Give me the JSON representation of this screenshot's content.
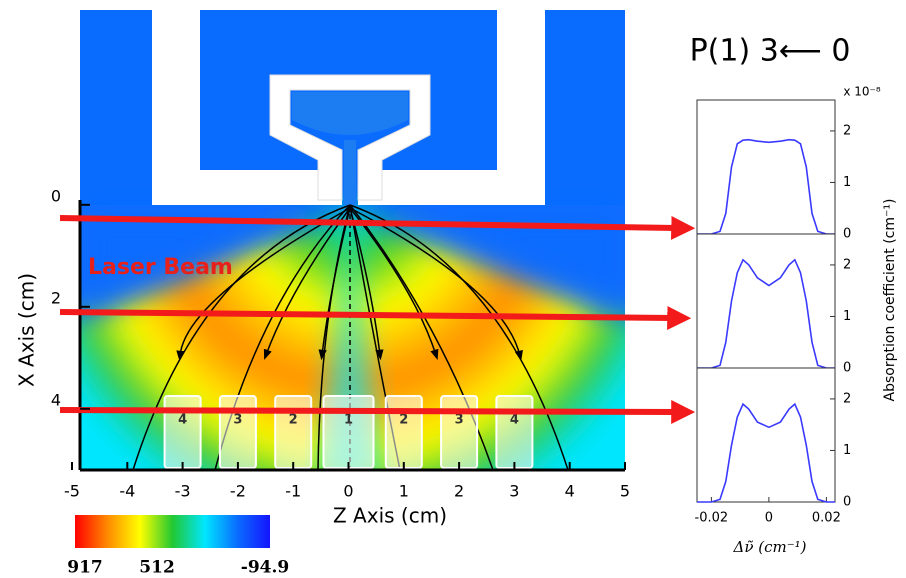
{
  "chart_data": [
    {
      "type": "contour",
      "x_label": "Z Axis (cm)",
      "y_label": "X Axis  (cm)",
      "annotation": "Laser Beam",
      "xlim": [
        -5,
        5
      ],
      "xticks": [
        -5,
        -4,
        -3,
        -2,
        -1,
        0,
        1,
        2,
        3,
        4,
        5
      ],
      "ylim": [
        -3.8,
        5.2
      ],
      "yticks": [
        0,
        2,
        4
      ],
      "zones": [
        "4",
        "3",
        "2",
        "1",
        "2",
        "3",
        "4"
      ],
      "colormap": [
        "#ff0000",
        "#ff8a00",
        "#ffff00",
        "#22c832",
        "#00e6ff",
        "#0a6cff",
        "#1414ff"
      ],
      "colorbar": [
        917,
        512,
        -94.9
      ]
    },
    {
      "type": "line",
      "title": "P(1) 3⟵ 0",
      "scale_label": "x 10⁻⁸",
      "x": [
        -0.025,
        -0.02,
        -0.017,
        -0.015,
        -0.013,
        -0.011,
        -0.009,
        -0.007,
        -0.004,
        0,
        0.004,
        0.007,
        0.009,
        0.011,
        0.013,
        0.015,
        0.017,
        0.02,
        0.023
      ],
      "series": [
        {
          "color": "#3a3aff",
          "values": [
            0,
            0,
            0.05,
            0.4,
            1.3,
            1.75,
            1.82,
            1.83,
            1.8,
            1.78,
            1.8,
            1.83,
            1.82,
            1.75,
            1.3,
            0.4,
            0.05,
            0,
            0
          ]
        }
      ],
      "xlim": [
        -0.025,
        0.023
      ],
      "ylim": [
        0,
        2.6
      ],
      "yticks": [
        0,
        1,
        2
      ]
    },
    {
      "type": "line",
      "y_label": "Absorption coefficient (cm⁻¹)",
      "x": [
        -0.025,
        -0.02,
        -0.017,
        -0.015,
        -0.013,
        -0.011,
        -0.009,
        -0.007,
        -0.004,
        0,
        0.004,
        0.007,
        0.009,
        0.011,
        0.013,
        0.015,
        0.017,
        0.02,
        0.023
      ],
      "series": [
        {
          "color": "#3a3aff",
          "values": [
            0,
            0,
            0.05,
            0.5,
            1.3,
            1.85,
            2.1,
            2.0,
            1.75,
            1.6,
            1.75,
            2.0,
            2.1,
            1.85,
            1.3,
            0.5,
            0.05,
            0,
            0
          ]
        }
      ],
      "xlim": [
        -0.025,
        0.023
      ],
      "ylim": [
        0,
        2.6
      ],
      "yticks": [
        0,
        1,
        2
      ]
    },
    {
      "type": "line",
      "x_label": "Δν̃ (cm⁻¹)",
      "x": [
        -0.025,
        -0.02,
        -0.017,
        -0.015,
        -0.013,
        -0.011,
        -0.009,
        -0.007,
        -0.004,
        0,
        0.004,
        0.007,
        0.009,
        0.011,
        0.013,
        0.015,
        0.017,
        0.02,
        0.023
      ],
      "series": [
        {
          "color": "#3a3aff",
          "values": [
            0,
            0,
            0.05,
            0.4,
            1.1,
            1.65,
            1.9,
            1.8,
            1.55,
            1.45,
            1.55,
            1.8,
            1.9,
            1.65,
            1.1,
            0.4,
            0.05,
            0,
            0
          ]
        }
      ],
      "xlim": [
        -0.025,
        0.023
      ],
      "ylim": [
        0,
        2.6
      ],
      "yticks": [
        0,
        1,
        2
      ],
      "xticks": [
        -0.02,
        0,
        0.02
      ]
    }
  ]
}
